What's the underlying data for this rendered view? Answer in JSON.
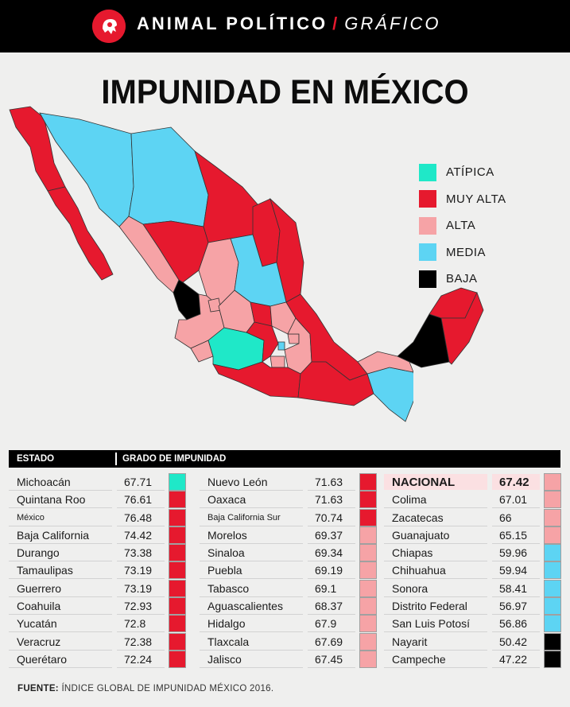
{
  "header": {
    "brand": "ANIMAL POLÍTICO",
    "separator": "/",
    "section": "GRÁFICO"
  },
  "title": "IMPUNIDAD EN MÉXICO",
  "colors": {
    "atipica": "#1fe8c8",
    "muy_alta": "#e6192e",
    "alta": "#f6a3a6",
    "media": "#5dd4f3",
    "baja": "#000000",
    "header_bg": "#000000",
    "nacional_highlight": "#fbe0e2"
  },
  "legend": [
    {
      "label": "ATÍPICA",
      "color": "#1fe8c8"
    },
    {
      "label": "MUY ALTA",
      "color": "#e6192e"
    },
    {
      "label": "ALTA",
      "color": "#f6a3a6"
    },
    {
      "label": "MEDIA",
      "color": "#5dd4f3"
    },
    {
      "label": "BAJA",
      "color": "#000000"
    }
  ],
  "table_headers": {
    "state": "ESTADO",
    "score": "GRADO DE IMPUNIDAD"
  },
  "chart_data": {
    "type": "table",
    "title": "IMPUNIDAD EN MÉXICO",
    "columns": [
      "ESTADO",
      "GRADO DE IMPUNIDAD"
    ],
    "rows": [
      {
        "state": "Michoacán",
        "value": 67.71,
        "category": "ATÍPICA"
      },
      {
        "state": "Quintana Roo",
        "value": 76.61,
        "category": "MUY ALTA"
      },
      {
        "state": "México",
        "value": 76.48,
        "category": "MUY ALTA"
      },
      {
        "state": "Baja California",
        "value": 74.42,
        "category": "MUY ALTA"
      },
      {
        "state": "Durango",
        "value": 73.38,
        "category": "MUY ALTA"
      },
      {
        "state": "Tamaulipas",
        "value": 73.19,
        "category": "MUY ALTA"
      },
      {
        "state": "Guerrero",
        "value": 73.19,
        "category": "MUY ALTA"
      },
      {
        "state": "Coahuila",
        "value": 72.93,
        "category": "MUY ALTA"
      },
      {
        "state": "Yucatán",
        "value": 72.8,
        "category": "MUY ALTA"
      },
      {
        "state": "Veracruz",
        "value": 72.38,
        "category": "MUY ALTA"
      },
      {
        "state": "Querétaro",
        "value": 72.24,
        "category": "MUY ALTA"
      },
      {
        "state": "Nuevo León",
        "value": 71.63,
        "category": "MUY ALTA"
      },
      {
        "state": "Oaxaca",
        "value": 71.63,
        "category": "MUY ALTA"
      },
      {
        "state": "Baja California Sur",
        "value": 70.74,
        "category": "MUY ALTA"
      },
      {
        "state": "Morelos",
        "value": 69.37,
        "category": "ALTA"
      },
      {
        "state": "Sinaloa",
        "value": 69.34,
        "category": "ALTA"
      },
      {
        "state": "Puebla",
        "value": 69.19,
        "category": "ALTA"
      },
      {
        "state": "Tabasco",
        "value": 69.1,
        "category": "ALTA"
      },
      {
        "state": "Aguascalientes",
        "value": 68.37,
        "category": "ALTA"
      },
      {
        "state": "Hidalgo",
        "value": 67.9,
        "category": "ALTA"
      },
      {
        "state": "Tlaxcala",
        "value": 67.69,
        "category": "ALTA"
      },
      {
        "state": "Jalisco",
        "value": 67.45,
        "category": "ALTA"
      },
      {
        "state": "NACIONAL",
        "value": 67.42,
        "category": "ALTA",
        "national": true
      },
      {
        "state": "Colima",
        "value": 67.01,
        "category": "ALTA"
      },
      {
        "state": "Zacatecas",
        "value": 66,
        "category": "ALTA"
      },
      {
        "state": "Guanajuato",
        "value": 65.15,
        "category": "ALTA"
      },
      {
        "state": "Chiapas",
        "value": 59.96,
        "category": "MEDIA"
      },
      {
        "state": "Chihuahua",
        "value": 59.94,
        "category": "MEDIA"
      },
      {
        "state": "Sonora",
        "value": 58.41,
        "category": "MEDIA"
      },
      {
        "state": "Distrito Federal",
        "value": 56.97,
        "category": "MEDIA"
      },
      {
        "state": "San Luis Potosí",
        "value": 56.86,
        "category": "MEDIA"
      },
      {
        "state": "Nayarit",
        "value": 50.42,
        "category": "BAJA"
      },
      {
        "state": "Campeche",
        "value": 47.22,
        "category": "BAJA"
      }
    ]
  },
  "source": {
    "label": "FUENTE:",
    "text": "ÍNDICE GLOBAL DE IMPUNIDAD MÉXICO 2016."
  }
}
